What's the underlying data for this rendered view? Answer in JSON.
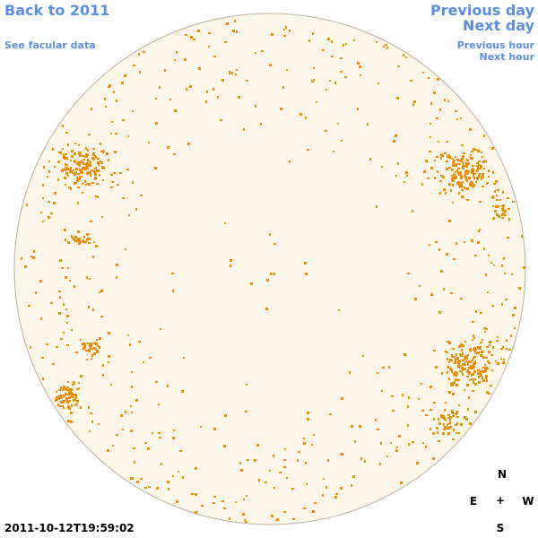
{
  "nav": {
    "back_label": "Back to 2011",
    "facular_label": "See facular data",
    "prev_day_label": "Previous day",
    "next_day_label": "Next day",
    "prev_hour_label": "Previous hour",
    "next_hour_label": "Next hour"
  },
  "timestamp": "2011-10-12T19:59:02",
  "compass": {
    "north": "N",
    "south": "S",
    "east": "E",
    "west": "W",
    "center": "+"
  },
  "colors": {
    "disk_fill": "#fdf7ea",
    "disk_border": "#b8b0a0",
    "facula": "#f08c00",
    "link": "#5b8ee0"
  }
}
